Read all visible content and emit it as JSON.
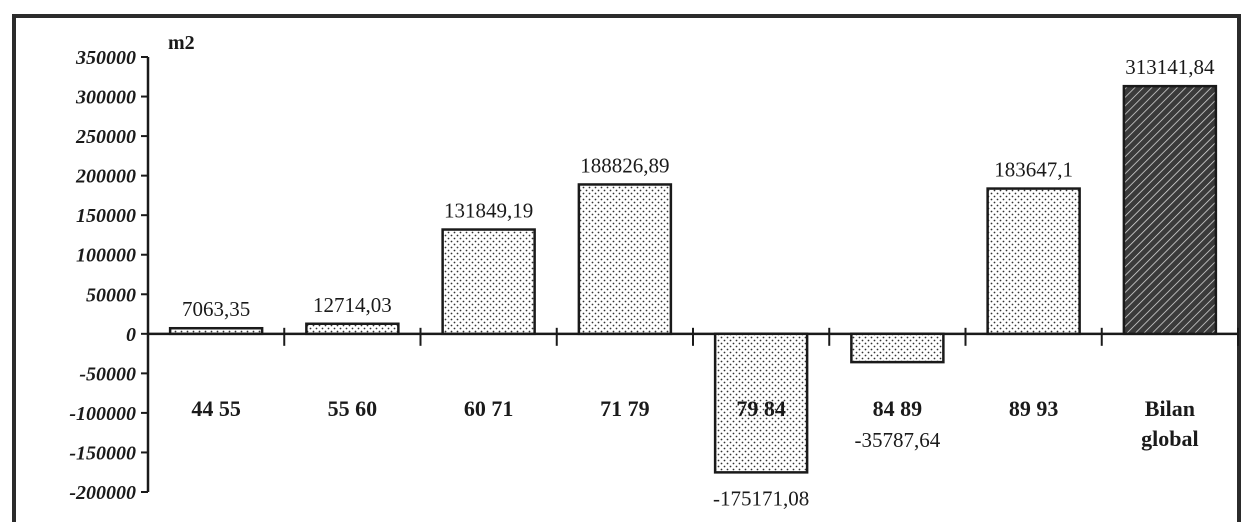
{
  "chart_data": {
    "type": "bar",
    "unit_label": "m2",
    "categories": [
      "44 55",
      "55 60",
      "60 71",
      "71 79",
      "79 84",
      "84 89",
      "89 93",
      "Bilan global"
    ],
    "values": [
      7063.35,
      12714.03,
      131849.19,
      188826.89,
      -175171.08,
      -35787.64,
      183647.1,
      313141.84
    ],
    "value_labels": [
      "7063,35",
      "12714,03",
      "131849,19",
      "188826,89",
      "-175171,08",
      "-35787,64",
      "183647,1",
      "313141,84"
    ],
    "ylim": [
      -200000,
      350000
    ],
    "yticks": [
      350000,
      300000,
      250000,
      200000,
      150000,
      100000,
      50000,
      0,
      -50000,
      -100000,
      -150000,
      -200000
    ],
    "ytick_labels": [
      "350000",
      "300000",
      "250000",
      "200000",
      "150000",
      "100000",
      "50000",
      "0",
      "-50000",
      "-100000",
      "-150000",
      "-200000"
    ],
    "bar_fills": [
      "dotted",
      "dotted",
      "dotted",
      "dotted",
      "dotted",
      "dotted",
      "dotted",
      "hatched"
    ],
    "grid": false,
    "legend": "none"
  }
}
